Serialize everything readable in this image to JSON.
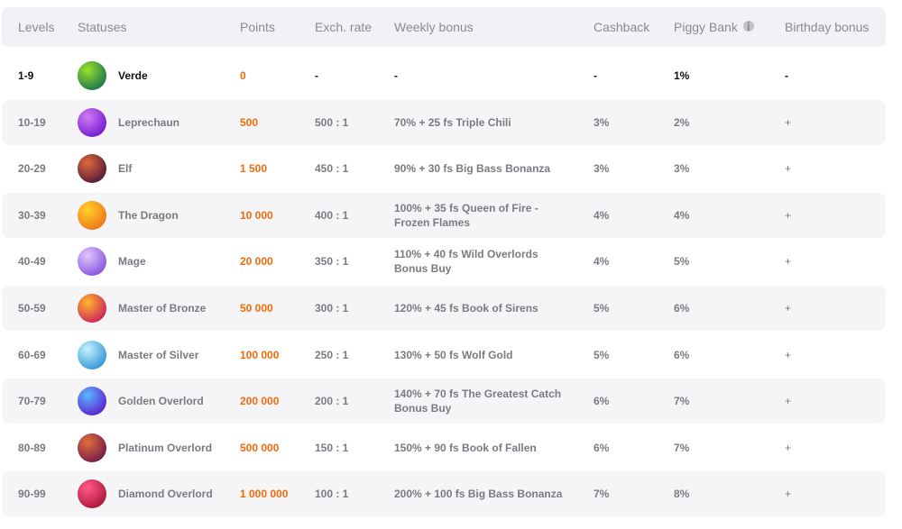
{
  "headers": {
    "levels": "Levels",
    "statuses": "Statuses",
    "points": "Points",
    "exch_rate": "Exch. rate",
    "weekly_bonus": "Weekly bonus",
    "cashback": "Cashback",
    "piggy_bank": "Piggy Bank",
    "piggy_info": "i",
    "birthday_bonus": "Birthday bonus"
  },
  "rows": [
    {
      "levels": "1-9",
      "status": "Verde",
      "points": "0",
      "exch": "-",
      "weekly": "-",
      "cashback": "-",
      "piggy": "1%",
      "birthday": "-",
      "colors": [
        "#9be22a",
        "#1f7a4a"
      ]
    },
    {
      "levels": "10-19",
      "status": "Leprechaun",
      "points": "500",
      "exch": "500 : 1",
      "weekly": "70% + 25 fs Triple Chili",
      "cashback": "3%",
      "piggy": "2%",
      "birthday": "+",
      "colors": [
        "#d07cf5",
        "#7a1fd0"
      ]
    },
    {
      "levels": "20-29",
      "status": "Elf",
      "points": "1 500",
      "exch": "450 : 1",
      "weekly": "90% + 30 fs Big Bass Bonanza",
      "cashback": "3%",
      "piggy": "3%",
      "birthday": "+",
      "colors": [
        "#e06a3a",
        "#5a1e3a"
      ]
    },
    {
      "levels": "30-39",
      "status": "The Dragon",
      "points": "10 000",
      "exch": "400 : 1",
      "weekly": "100% + 35 fs Queen of Fire - Frozen Flames",
      "cashback": "4%",
      "piggy": "4%",
      "birthday": "+",
      "colors": [
        "#ffd22a",
        "#f07a1a"
      ]
    },
    {
      "levels": "40-49",
      "status": "Mage",
      "points": "20 000",
      "exch": "350 : 1",
      "weekly": "110% + 40 fs Wild Overlords Bonus Buy",
      "cashback": "4%",
      "piggy": "5%",
      "birthday": "+",
      "colors": [
        "#e2c8ff",
        "#8a5ae0"
      ]
    },
    {
      "levels": "50-59",
      "status": "Master of Bronze",
      "points": "50 000",
      "exch": "300 : 1",
      "weekly": "120% + 45 fs Book of Sirens",
      "cashback": "5%",
      "piggy": "6%",
      "birthday": "+",
      "colors": [
        "#ffb52a",
        "#d02a5a"
      ]
    },
    {
      "levels": "60-69",
      "status": "Master of Silver",
      "points": "100 000",
      "exch": "250 : 1",
      "weekly": "130% + 50 fs Wolf Gold",
      "cashback": "5%",
      "piggy": "6%",
      "birthday": "+",
      "colors": [
        "#c8f2ff",
        "#3a9ad8"
      ]
    },
    {
      "levels": "70-79",
      "status": "Golden Overlord",
      "points": "200 000",
      "exch": "200 : 1",
      "weekly": "140% + 70 fs The Greatest Catch Bonus Buy",
      "cashback": "6%",
      "piggy": "7%",
      "birthday": "+",
      "colors": [
        "#5ab8ff",
        "#5a2ad0"
      ]
    },
    {
      "levels": "80-89",
      "status": "Platinum Overlord",
      "points": "500 000",
      "exch": "150 : 1",
      "weekly": "150% + 90 fs Book of Fallen",
      "cashback": "6%",
      "piggy": "7%",
      "birthday": "+",
      "colors": [
        "#e0703a",
        "#7a1e4a"
      ]
    },
    {
      "levels": "90-99",
      "status": "Diamond Overlord",
      "points": "1 000 000",
      "exch": "100 : 1",
      "weekly": "200% + 100 fs Big Bass Bonanza",
      "cashback": "7%",
      "piggy": "8%",
      "birthday": "+",
      "colors": [
        "#ff5a8a",
        "#b01a3a"
      ]
    }
  ]
}
